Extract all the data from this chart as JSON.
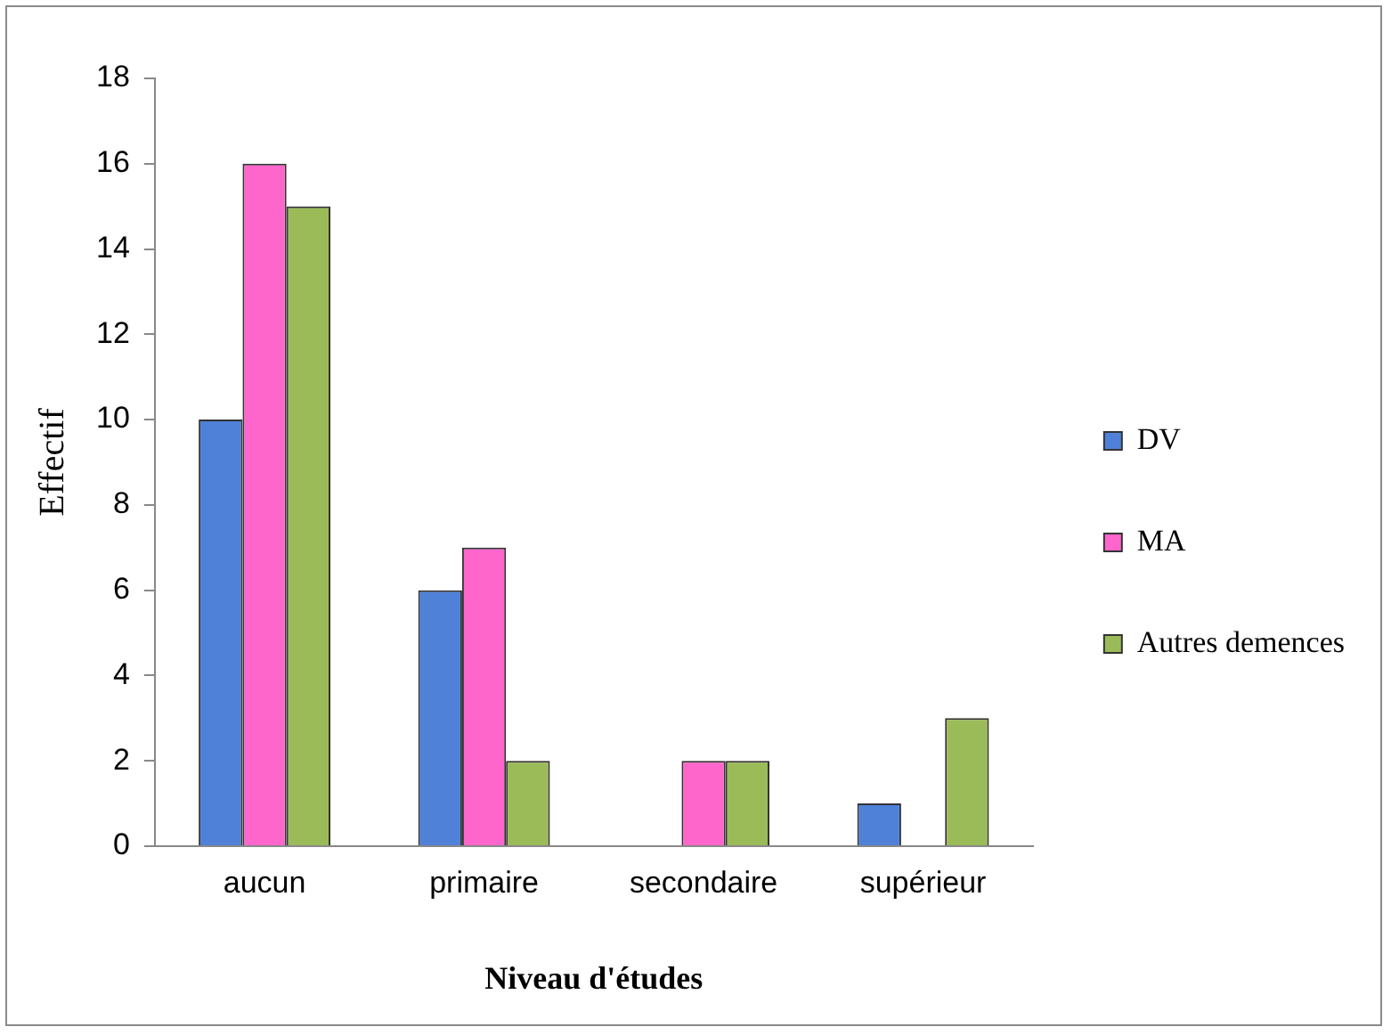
{
  "chart_data": {
    "type": "bar",
    "xlabel": "Niveau d'études",
    "ylabel": "Effectif",
    "categories": [
      "aucun",
      "primaire",
      "secondaire",
      "supérieur"
    ],
    "series": [
      {
        "name": "DV",
        "color": "#4f81d9",
        "values": [
          10,
          6,
          0,
          1
        ]
      },
      {
        "name": "MA",
        "color": "#ff66cc",
        "values": [
          16,
          7,
          2,
          0
        ]
      },
      {
        "name": "Autres demences",
        "color": "#9bbb59",
        "values": [
          15,
          2,
          2,
          3
        ]
      }
    ],
    "ylim": [
      0,
      18
    ],
    "yticks": [
      0,
      2,
      4,
      6,
      8,
      10,
      12,
      14,
      16,
      18
    ],
    "grid": false,
    "legend": "right"
  }
}
